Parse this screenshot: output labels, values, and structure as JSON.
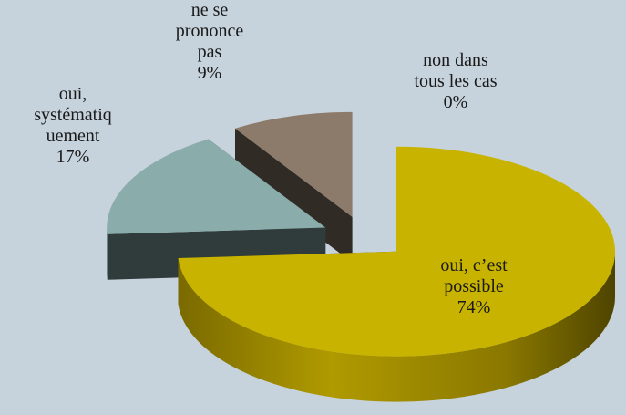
{
  "chart_data": {
    "type": "pie3d",
    "categories": [
      "oui, c’est\npossible",
      "oui,\nsystématiq\nuement",
      "ne se\nprononce\npas",
      "non dans\ntous les cas"
    ],
    "values": [
      74,
      17,
      9,
      0
    ],
    "value_labels": [
      "74%",
      "17%",
      "9%",
      "0%"
    ],
    "colors": [
      "#c8b400",
      "#8aacaa",
      "#8c7b6b",
      "#6f8fb0"
    ]
  }
}
